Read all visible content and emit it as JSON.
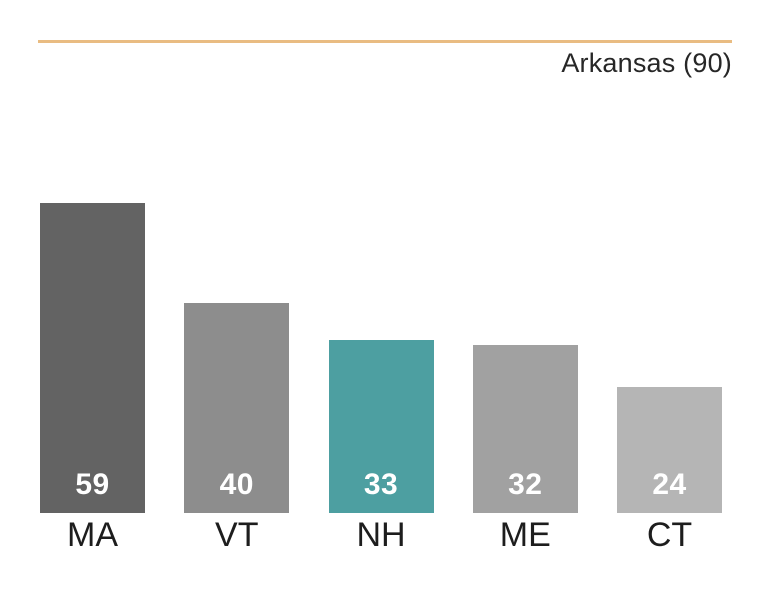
{
  "chart_data": {
    "type": "bar",
    "title": "Arkansas (90)",
    "categories": [
      "MA",
      "VT",
      "NH",
      "ME",
      "CT"
    ],
    "values": [
      59,
      40,
      33,
      32,
      24
    ],
    "bar_colors": [
      "#636363",
      "#8D8D8D",
      "#4D9FA1",
      "#A1A1A1",
      "#B5B5B5"
    ],
    "highlight_index": 2,
    "highlight_color": "#4D9FA1",
    "accent_line_color": "#E9BC82",
    "value_label_color": "#FFFFFF",
    "category_label_color": "#1D1D1D",
    "title_color": "#272727",
    "xlabel": "",
    "ylabel": "",
    "ylim": [
      0,
      59
    ],
    "grid": false,
    "legend_position": "none",
    "value_labels_position": "inside-bottom",
    "axis_lines": "none"
  }
}
